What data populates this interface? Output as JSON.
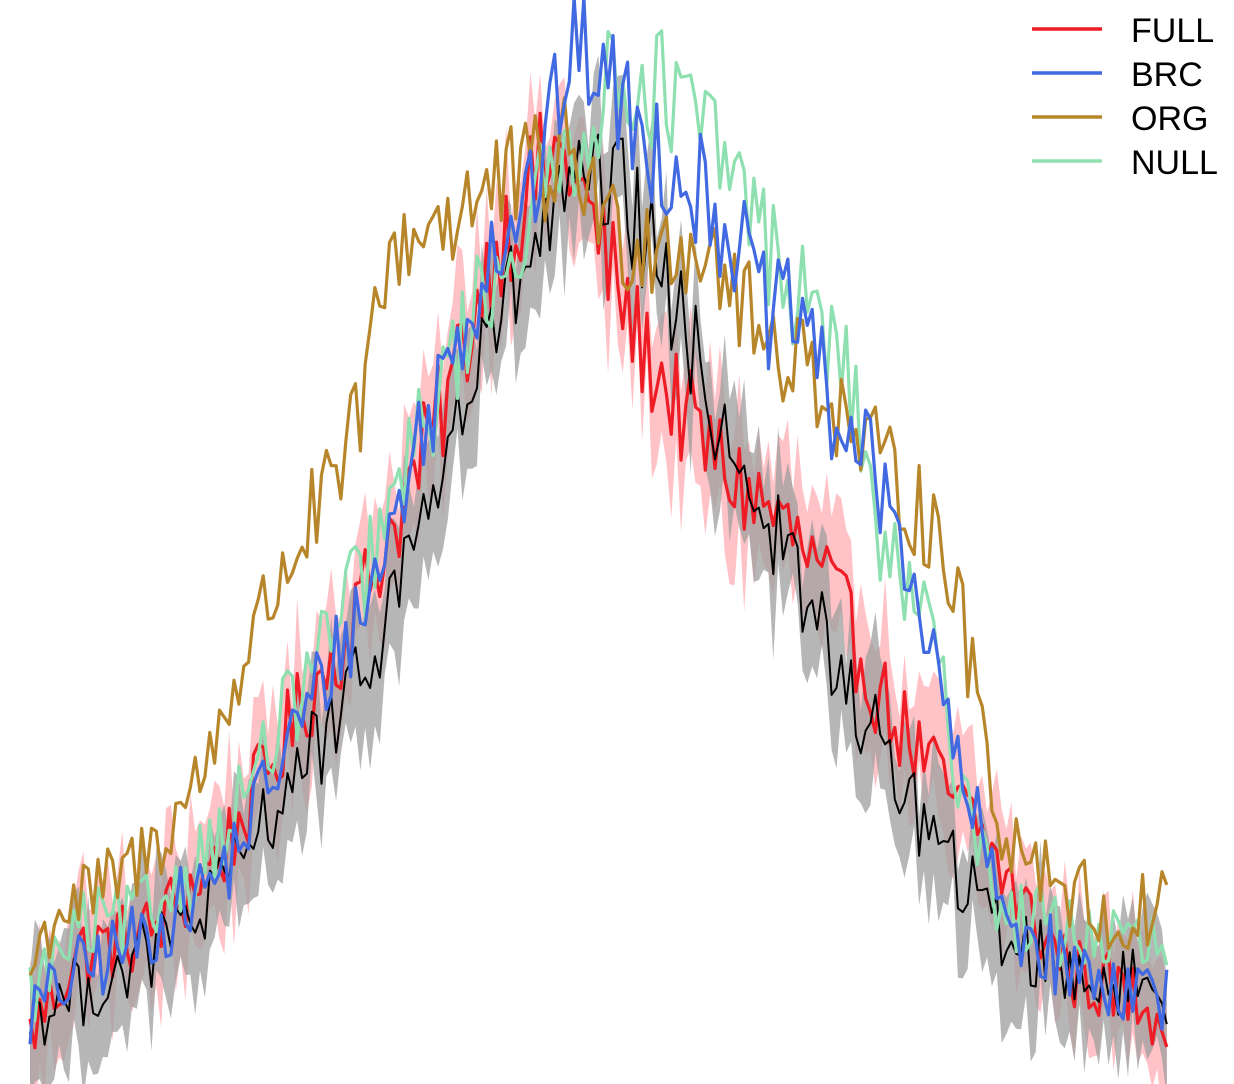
{
  "chart_data": {
    "type": "line",
    "title": "",
    "xlabel": "",
    "ylabel": "",
    "axes_visible": false,
    "grid": false,
    "legend_position": "top-right",
    "xlim": [
      0,
      240
    ],
    "ylim": [
      0,
      1
    ],
    "x_range": [
      0,
      234
    ],
    "series": [
      {
        "name": "FULL",
        "color": "#ee1c25",
        "band": {
          "color": "#ffb3b8",
          "width": 0.06
        },
        "keypoints": [
          [
            0,
            0.02
          ],
          [
            10,
            0.1
          ],
          [
            25,
            0.12
          ],
          [
            40,
            0.2
          ],
          [
            55,
            0.33
          ],
          [
            65,
            0.41
          ],
          [
            75,
            0.52
          ],
          [
            85,
            0.63
          ],
          [
            95,
            0.78
          ],
          [
            105,
            0.86
          ],
          [
            110,
            0.88
          ],
          [
            115,
            0.82
          ],
          [
            125,
            0.7
          ],
          [
            135,
            0.62
          ],
          [
            145,
            0.56
          ],
          [
            155,
            0.52
          ],
          [
            165,
            0.45
          ],
          [
            175,
            0.35
          ],
          [
            185,
            0.28
          ],
          [
            195,
            0.22
          ],
          [
            205,
            0.14
          ],
          [
            215,
            0.08
          ],
          [
            225,
            0.06
          ],
          [
            234,
            0.04
          ]
        ]
      },
      {
        "name": "BRC",
        "color": "#4169e1",
        "keypoints": [
          [
            0,
            0.04
          ],
          [
            10,
            0.08
          ],
          [
            25,
            0.12
          ],
          [
            40,
            0.18
          ],
          [
            55,
            0.32
          ],
          [
            70,
            0.45
          ],
          [
            80,
            0.6
          ],
          [
            95,
            0.79
          ],
          [
            105,
            0.86
          ],
          [
            110,
            0.96
          ],
          [
            115,
            0.98
          ],
          [
            125,
            0.9
          ],
          [
            135,
            0.86
          ],
          [
            145,
            0.8
          ],
          [
            152,
            0.72
          ],
          [
            160,
            0.72
          ],
          [
            165,
            0.62
          ],
          [
            170,
            0.6
          ],
          [
            175,
            0.55
          ],
          [
            180,
            0.5
          ],
          [
            185,
            0.4
          ],
          [
            190,
            0.3
          ],
          [
            200,
            0.14
          ],
          [
            215,
            0.08
          ],
          [
            234,
            0.06
          ]
        ]
      },
      {
        "name": "ORG",
        "color": "#b8862a",
        "keypoints": [
          [
            0,
            0.08
          ],
          [
            5,
            0.14
          ],
          [
            15,
            0.16
          ],
          [
            25,
            0.2
          ],
          [
            35,
            0.27
          ],
          [
            45,
            0.4
          ],
          [
            55,
            0.5
          ],
          [
            65,
            0.57
          ],
          [
            75,
            0.79
          ],
          [
            85,
            0.82
          ],
          [
            95,
            0.84
          ],
          [
            105,
            0.86
          ],
          [
            112,
            0.88
          ],
          [
            120,
            0.8
          ],
          [
            130,
            0.8
          ],
          [
            140,
            0.79
          ],
          [
            150,
            0.7
          ],
          [
            160,
            0.68
          ],
          [
            170,
            0.6
          ],
          [
            180,
            0.55
          ],
          [
            188,
            0.5
          ],
          [
            195,
            0.35
          ],
          [
            200,
            0.22
          ],
          [
            215,
            0.16
          ],
          [
            225,
            0.12
          ],
          [
            234,
            0.16
          ]
        ]
      },
      {
        "name": "NULL",
        "color": "#8fe0b0",
        "keypoints": [
          [
            0,
            0.06
          ],
          [
            10,
            0.12
          ],
          [
            25,
            0.14
          ],
          [
            40,
            0.22
          ],
          [
            55,
            0.35
          ],
          [
            70,
            0.48
          ],
          [
            85,
            0.66
          ],
          [
            95,
            0.76
          ],
          [
            105,
            0.83
          ],
          [
            115,
            0.92
          ],
          [
            125,
            0.96
          ],
          [
            135,
            0.92
          ],
          [
            145,
            0.86
          ],
          [
            155,
            0.76
          ],
          [
            165,
            0.7
          ],
          [
            170,
            0.63
          ],
          [
            175,
            0.5
          ],
          [
            180,
            0.45
          ],
          [
            185,
            0.42
          ],
          [
            190,
            0.3
          ],
          [
            200,
            0.14
          ],
          [
            215,
            0.12
          ],
          [
            234,
            0.1
          ]
        ]
      },
      {
        "name": "",
        "color": "#000000",
        "band": {
          "color": "#9e9e9e",
          "width": 0.06
        },
        "keypoints": [
          [
            0,
            0.04
          ],
          [
            10,
            0.06
          ],
          [
            25,
            0.1
          ],
          [
            40,
            0.16
          ],
          [
            55,
            0.28
          ],
          [
            65,
            0.33
          ],
          [
            75,
            0.45
          ],
          [
            85,
            0.58
          ],
          [
            95,
            0.7
          ],
          [
            105,
            0.8
          ],
          [
            112,
            0.84
          ],
          [
            122,
            0.84
          ],
          [
            130,
            0.76
          ],
          [
            140,
            0.64
          ],
          [
            150,
            0.54
          ],
          [
            160,
            0.44
          ],
          [
            170,
            0.34
          ],
          [
            180,
            0.26
          ],
          [
            190,
            0.18
          ],
          [
            200,
            0.12
          ],
          [
            215,
            0.08
          ],
          [
            234,
            0.06
          ]
        ]
      }
    ]
  }
}
